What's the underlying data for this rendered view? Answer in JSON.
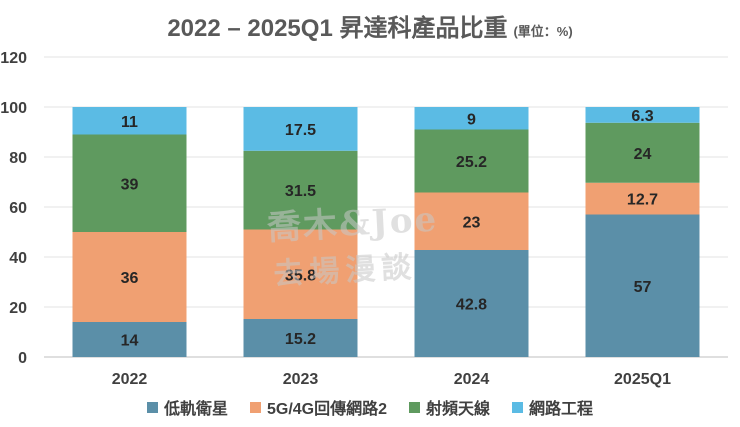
{
  "chart_data": {
    "type": "bar",
    "stacked": true,
    "title": "2022 – 2025Q1 昇達科產品比重",
    "unit_label": "(單位：%)",
    "categories": [
      "2022",
      "2023",
      "2024",
      "2025Q1"
    ],
    "ylim": [
      0,
      120
    ],
    "yticks": [
      0,
      20,
      40,
      60,
      80,
      100,
      120
    ],
    "grid": true,
    "legend_position": "bottom",
    "series": [
      {
        "name": "低軌衛星",
        "color": "#5b8fa8",
        "values": [
          14,
          15.2,
          42.8,
          57
        ],
        "labels": [
          "14",
          "15.2",
          "42.8",
          "57"
        ]
      },
      {
        "name": "5G/4G回傳網路2",
        "color": "#f0a072",
        "values": [
          36,
          35.8,
          23,
          12.7
        ],
        "labels": [
          "36",
          "35.8",
          "23",
          "12.7"
        ]
      },
      {
        "name": "射頻天線",
        "color": "#5f9a5f",
        "values": [
          39,
          31.5,
          25.2,
          24
        ],
        "labels": [
          "39",
          "31.5",
          "25.2",
          "24"
        ]
      },
      {
        "name": "網路工程",
        "color": "#5bbbe4",
        "values": [
          11,
          17.5,
          9,
          6.3
        ],
        "labels": [
          "11",
          "17.5",
          "9",
          "6.3"
        ]
      }
    ]
  },
  "watermark": {
    "line1": "喬木&Joe",
    "line2": "去場漫談"
  }
}
